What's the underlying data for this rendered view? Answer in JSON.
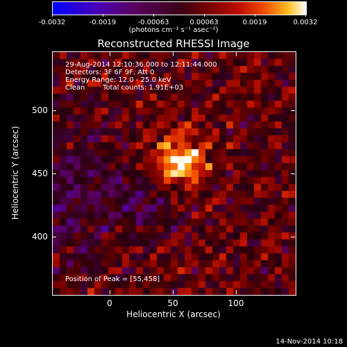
{
  "colorbar": {
    "min": -0.0032,
    "max": 0.0032,
    "ticks": [
      "-0.0032",
      "-0.0019",
      "-0.00063",
      "0.00063",
      "0.0019",
      "0.0032"
    ],
    "units": "(photons cm⁻² s⁻¹ asec⁻²)"
  },
  "title": "Reconstructed RHESSI Image",
  "annotations": {
    "line1": "29-Aug-2014 12:10:36.000 to 12:11:44.000",
    "line2": "Detectors: 3F 6F 9F, Att 0",
    "line3": "Energy Range: 12.0 - 25.0 keV",
    "line4_a": "Clean",
    "line4_b": "Total counts: 1.91E+03",
    "peak": "Position of Peak = [55,458]"
  },
  "axes": {
    "xlabel": "Heliocentric X (arcsec)",
    "ylabel": "Heliocentric Y (arcsec)",
    "x_ticks": [
      "0",
      "50",
      "100"
    ],
    "y_ticks": [
      "400",
      "450",
      "500"
    ]
  },
  "footer": "14-Nov-2014 10:18",
  "image": {
    "peak_x": 55,
    "peak_y": 458
  }
}
